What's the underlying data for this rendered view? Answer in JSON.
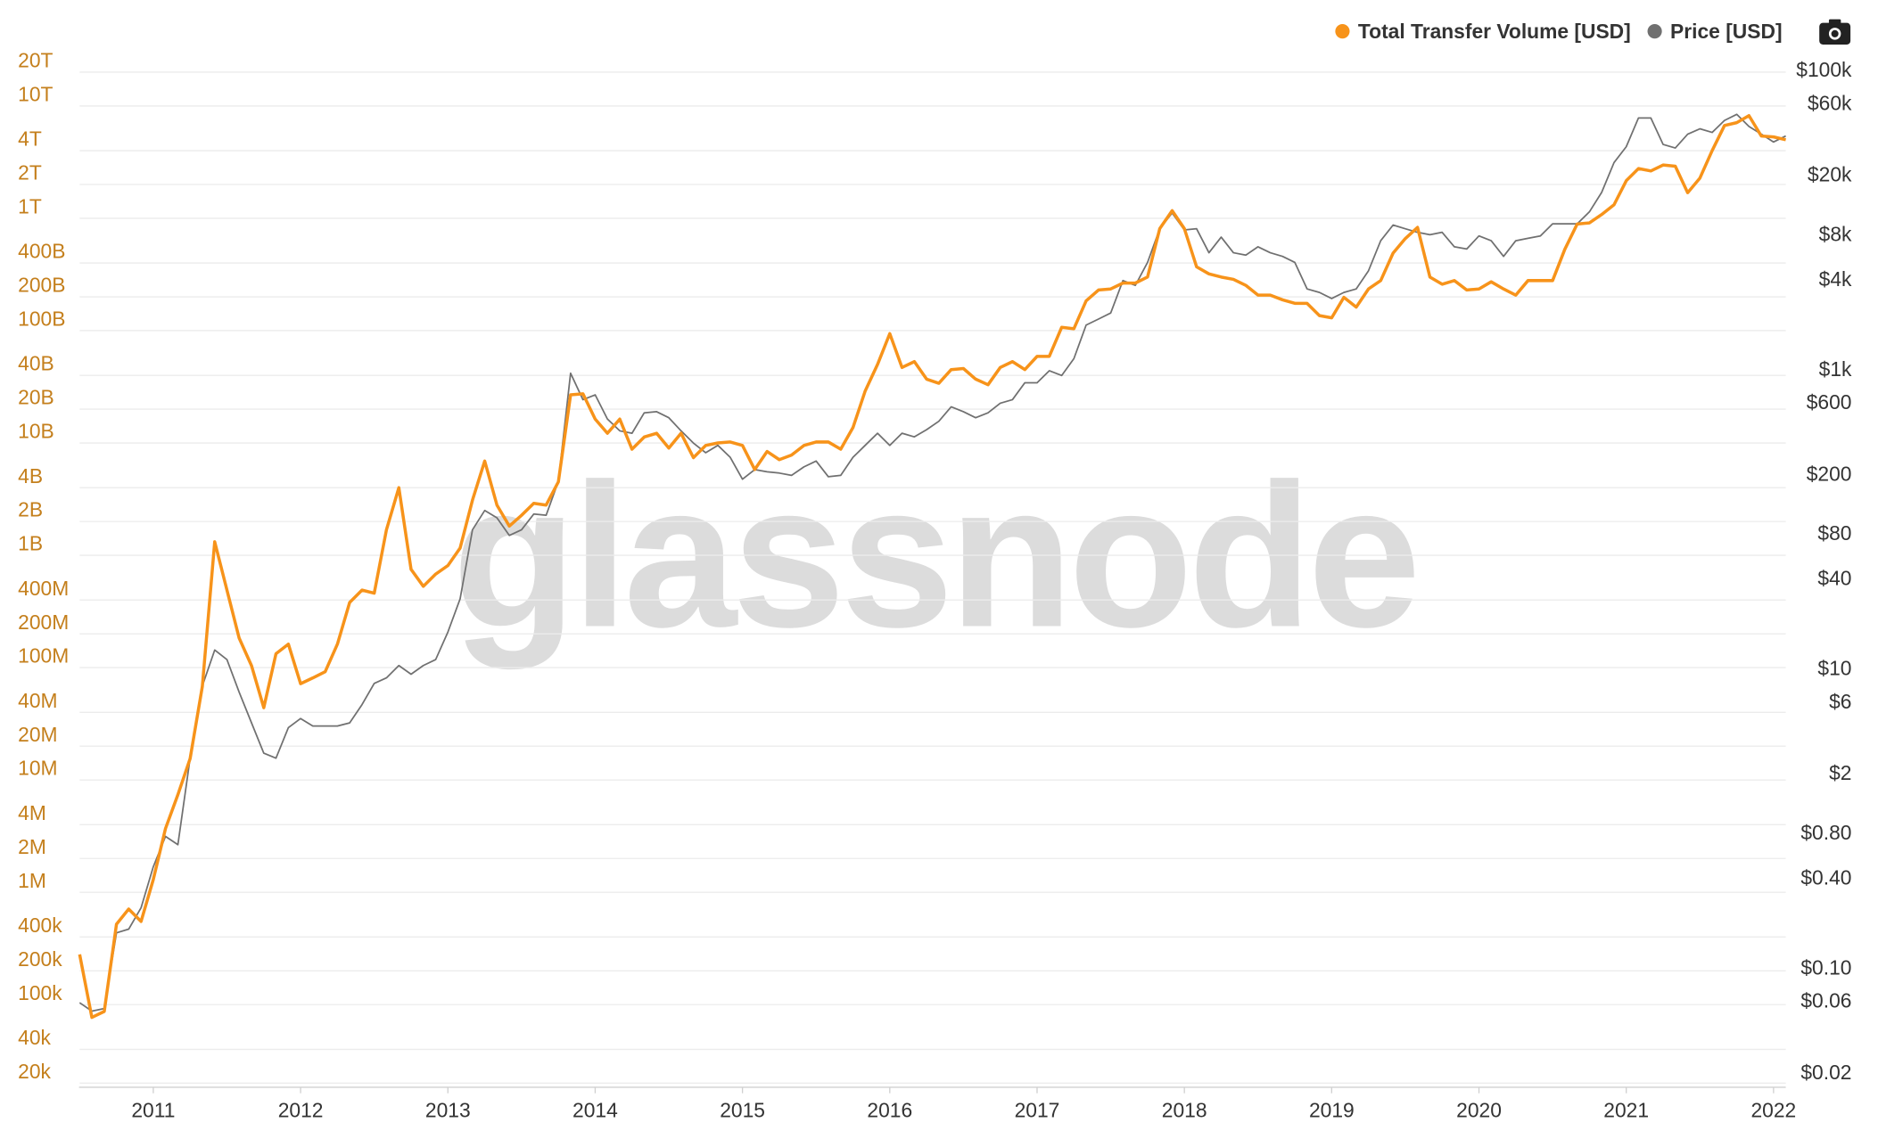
{
  "chart_data": {
    "type": "line",
    "watermark": "glassnode",
    "ylog": true,
    "y2log": true,
    "grid": true,
    "legend": "top-right",
    "xlim": [
      2010.5,
      2022.083
    ],
    "xticks": [
      2011,
      2012,
      2013,
      2014,
      2015,
      2016,
      2017,
      2018,
      2019,
      2020,
      2021,
      2022
    ],
    "ylim": [
      18400,
      32700000000000.0
    ],
    "yticks": [
      {
        "value": 20000,
        "label": "20k"
      },
      {
        "value": 40000,
        "label": "40k"
      },
      {
        "value": 100000,
        "label": "100k"
      },
      {
        "value": 200000,
        "label": "200k"
      },
      {
        "value": 400000,
        "label": "400k"
      },
      {
        "value": 1000000.0,
        "label": "1M"
      },
      {
        "value": 2000000.0,
        "label": "2M"
      },
      {
        "value": 4000000.0,
        "label": "4M"
      },
      {
        "value": 10000000.0,
        "label": "10M"
      },
      {
        "value": 20000000.0,
        "label": "20M"
      },
      {
        "value": 40000000.0,
        "label": "40M"
      },
      {
        "value": 100000000.0,
        "label": "100M"
      },
      {
        "value": 200000000.0,
        "label": "200M"
      },
      {
        "value": 400000000.0,
        "label": "400M"
      },
      {
        "value": 1000000000.0,
        "label": "1B"
      },
      {
        "value": 2000000000.0,
        "label": "2B"
      },
      {
        "value": 4000000000.0,
        "label": "4B"
      },
      {
        "value": 10000000000.0,
        "label": "10B"
      },
      {
        "value": 20000000000.0,
        "label": "20B"
      },
      {
        "value": 40000000000.0,
        "label": "40B"
      },
      {
        "value": 100000000000.0,
        "label": "100B"
      },
      {
        "value": 200000000000.0,
        "label": "200B"
      },
      {
        "value": 400000000000.0,
        "label": "400B"
      },
      {
        "value": 1000000000000.0,
        "label": "1T"
      },
      {
        "value": 2000000000000.0,
        "label": "2T"
      },
      {
        "value": 4000000000000.0,
        "label": "4T"
      },
      {
        "value": 10000000000000.0,
        "label": "10T"
      },
      {
        "value": 20000000000000.0,
        "label": "20T"
      }
    ],
    "y2lim": [
      0.0158,
      139000
    ],
    "y2ticks": [
      {
        "value": 0.02,
        "label": "$0.02"
      },
      {
        "value": 0.06,
        "label": "$0.06"
      },
      {
        "value": 0.1,
        "label": "$0.10"
      },
      {
        "value": 0.4,
        "label": "$0.40"
      },
      {
        "value": 0.8,
        "label": "$0.80"
      },
      {
        "value": 2,
        "label": "$2"
      },
      {
        "value": 6,
        "label": "$6"
      },
      {
        "value": 10,
        "label": "$10"
      },
      {
        "value": 40,
        "label": "$40"
      },
      {
        "value": 80,
        "label": "$80"
      },
      {
        "value": 200,
        "label": "$200"
      },
      {
        "value": 600,
        "label": "$600"
      },
      {
        "value": 1000,
        "label": "$1k"
      },
      {
        "value": 4000,
        "label": "$4k"
      },
      {
        "value": 8000,
        "label": "$8k"
      },
      {
        "value": 20000,
        "label": "$20k"
      },
      {
        "value": 60000,
        "label": "$60k"
      },
      {
        "value": 100000,
        "label": "$100k"
      }
    ],
    "x": [
      2010.5,
      2010.583,
      2010.667,
      2010.75,
      2010.833,
      2010.917,
      2011,
      2011.083,
      2011.167,
      2011.25,
      2011.333,
      2011.417,
      2011.5,
      2011.583,
      2011.667,
      2011.75,
      2011.833,
      2011.917,
      2012,
      2012.083,
      2012.167,
      2012.25,
      2012.333,
      2012.417,
      2012.5,
      2012.583,
      2012.667,
      2012.75,
      2012.833,
      2012.917,
      2013,
      2013.083,
      2013.167,
      2013.25,
      2013.333,
      2013.417,
      2013.5,
      2013.583,
      2013.667,
      2013.75,
      2013.833,
      2013.917,
      2014,
      2014.083,
      2014.167,
      2014.25,
      2014.333,
      2014.417,
      2014.5,
      2014.583,
      2014.667,
      2014.75,
      2014.833,
      2014.917,
      2015,
      2015.083,
      2015.167,
      2015.25,
      2015.333,
      2015.417,
      2015.5,
      2015.583,
      2015.667,
      2015.75,
      2015.833,
      2015.917,
      2016,
      2016.083,
      2016.167,
      2016.25,
      2016.333,
      2016.417,
      2016.5,
      2016.583,
      2016.667,
      2016.75,
      2016.833,
      2016.917,
      2017,
      2017.083,
      2017.167,
      2017.25,
      2017.333,
      2017.417,
      2017.5,
      2017.583,
      2017.667,
      2017.75,
      2017.833,
      2017.917,
      2018,
      2018.083,
      2018.167,
      2018.25,
      2018.333,
      2018.417,
      2018.5,
      2018.583,
      2018.667,
      2018.75,
      2018.833,
      2018.917,
      2019,
      2019.083,
      2019.167,
      2019.25,
      2019.333,
      2019.417,
      2019.5,
      2019.583,
      2019.667,
      2019.75,
      2019.833,
      2019.917,
      2020,
      2020.083,
      2020.167,
      2020.25,
      2020.333,
      2020.417,
      2020.5,
      2020.583,
      2020.667,
      2020.75,
      2020.833,
      2020.917,
      2021,
      2021.083,
      2021.167,
      2021.25,
      2021.333,
      2021.417,
      2021.5,
      2021.583,
      2021.667,
      2021.75,
      2021.833,
      2021.917,
      2022,
      2022.083
    ],
    "series": [
      {
        "name": "Total Transfer Volume [USD]",
        "color": "#f7931a",
        "axis": "y",
        "values": [
          280000,
          77000,
          87000,
          520000,
          710000,
          550000,
          1300000,
          3700000,
          7400000,
          15500000,
          68000000,
          1320000000,
          490000000,
          183000000,
          104000000,
          44000000,
          133000000,
          162000000,
          72000000,
          81000000,
          92000000,
          162000000,
          380000000,
          490000000,
          460000000,
          1690000000,
          4000000000,
          750000000,
          530000000,
          680000000,
          810000000,
          1160000000,
          3100000000,
          6900000000,
          2800000000,
          1820000000,
          2270000000,
          2900000000,
          2800000000,
          4500000000,
          26800000000,
          27400000000,
          16300000000,
          12200000000,
          16300000000,
          8800000000,
          11300000000,
          12200000000,
          9000000000,
          12200000000,
          7400000000,
          9500000000,
          10000000000,
          10200000000,
          9500000000,
          5800000000,
          8400000000,
          7100000000,
          7800000000,
          9500000000,
          10200000000,
          10200000000,
          8800000000,
          13700000000,
          29000000000,
          50000000000,
          94000000000,
          47000000000,
          53000000000,
          37000000000,
          34000000000,
          45000000000,
          46000000000,
          37000000000,
          33000000000,
          47000000000,
          53000000000,
          45000000000,
          59000000000,
          59000000000,
          107000000000,
          104000000000,
          184000000000,
          230000000000,
          235000000000,
          265000000000,
          265000000000,
          300000000000,
          810000000000,
          1170000000000,
          810000000000,
          370000000000,
          320000000000,
          300000000000,
          286000000000,
          253000000000,
          207000000000,
          207000000000,
          188000000000,
          175000000000,
          175000000000,
          136000000000,
          130000000000,
          198000000000,
          162000000000,
          235000000000,
          279000000000,
          490000000000,
          660000000000,
          830000000000,
          300000000000,
          259000000000,
          279000000000,
          230000000000,
          235000000000,
          272000000000,
          235000000000,
          207000000000,
          279000000000,
          279000000000,
          279000000000,
          530000000000,
          890000000000,
          910000000000,
          1080000000000,
          1320000000000,
          2160000000000,
          2770000000000,
          2640000000000,
          2980000000000,
          2910000000000,
          1690000000000,
          2280000000000,
          4000000000000,
          6700000000000,
          7100000000000,
          8200000000000,
          5400000000000,
          5300000000000,
          5000000000000
        ]
      },
      {
        "name": "Price [USD]",
        "color": "#707070",
        "axis": "y2",
        "values": [
          0.058,
          0.051,
          0.053,
          0.17,
          0.18,
          0.25,
          0.47,
          0.75,
          0.66,
          2.5,
          7.6,
          13.2,
          11.4,
          6.9,
          4.3,
          2.7,
          2.5,
          4.0,
          4.6,
          4.1,
          4.1,
          4.1,
          4.3,
          5.7,
          7.9,
          8.6,
          10.4,
          9.1,
          10.4,
          11.4,
          17.4,
          29,
          84,
          113,
          101,
          77,
          84,
          107,
          105,
          177,
          935,
          622,
          670,
          462,
          385,
          371,
          508,
          517,
          471,
          385,
          319,
          275,
          308,
          256,
          183,
          212,
          205,
          201,
          194,
          221,
          242,
          190,
          194,
          256,
          308,
          371,
          308,
          371,
          351,
          392,
          446,
          557,
          517,
          471,
          508,
          589,
          622,
          807,
          807,
          971,
          902,
          1170,
          1960,
          2150,
          2360,
          3890,
          3610,
          5140,
          8630,
          11000,
          8470,
          8630,
          5970,
          7590,
          5970,
          5750,
          6540,
          5970,
          5640,
          5140,
          3420,
          3240,
          2950,
          3240,
          3420,
          4520,
          7180,
          9140,
          8630,
          8170,
          7870,
          8170,
          6540,
          6320,
          7730,
          7180,
          5640,
          7180,
          7450,
          7730,
          9310,
          9310,
          9310,
          11200,
          15100,
          23900,
          30500,
          47500,
          47500,
          31600,
          29900,
          37000,
          40200,
          38000,
          45700,
          50200,
          41700,
          37000,
          32800,
          36000
        ]
      }
    ]
  }
}
